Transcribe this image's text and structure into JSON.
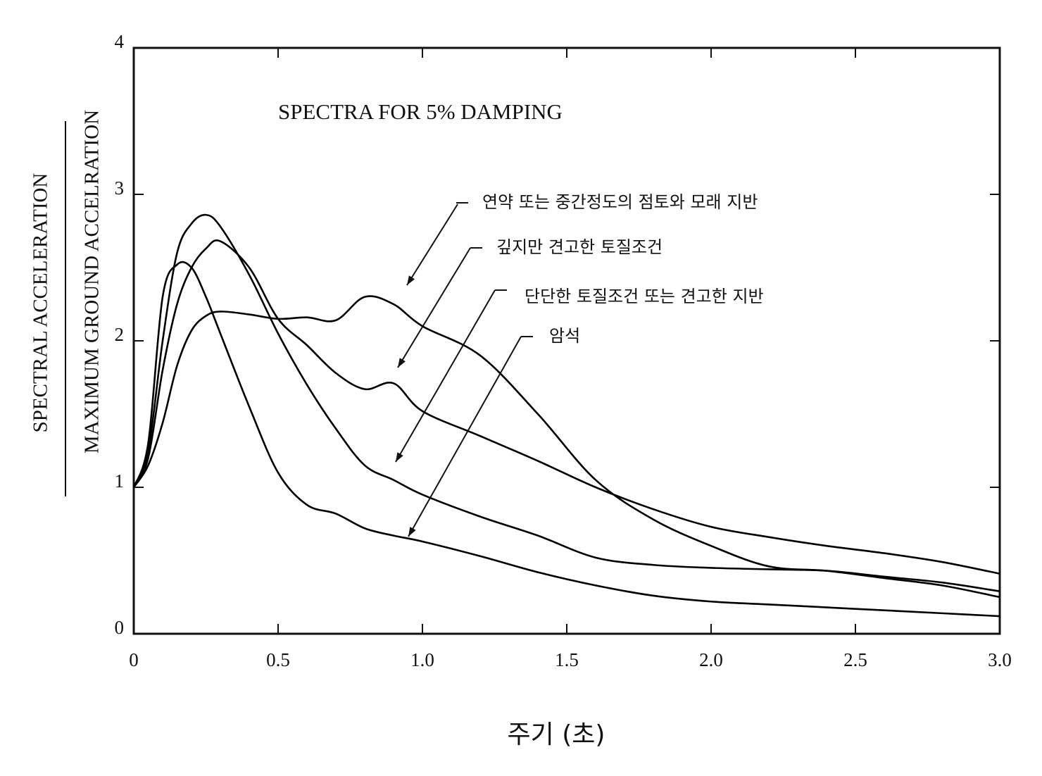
{
  "chart_data": {
    "type": "line",
    "title": "SPECTRA FOR 5% DAMPING",
    "y_label_numerator": "SPECTRAL ACCELERATION",
    "y_label_denominator": "MAXIMUM GROUND ACCELRATION",
    "x_label": "주기 (초)",
    "x": [
      0,
      0.05,
      0.1,
      0.15,
      0.2,
      0.25,
      0.3,
      0.4,
      0.5,
      0.6,
      0.7,
      0.8,
      0.9,
      1.0,
      1.2,
      1.4,
      1.6,
      1.8,
      2.0,
      2.2,
      2.4,
      2.6,
      2.8,
      3.0
    ],
    "series": [
      {
        "name": "연약 또는 중간정도의 점토와 모래 지반",
        "color": "#000000",
        "values": [
          1.0,
          1.15,
          1.44,
          1.83,
          2.07,
          2.17,
          2.2,
          2.18,
          2.15,
          2.16,
          2.14,
          2.3,
          2.25,
          2.1,
          1.9,
          1.5,
          1.05,
          0.78,
          0.6,
          0.46,
          0.43,
          0.38,
          0.33,
          0.25
        ]
      },
      {
        "name": "깊지만 견고한 토질조건",
        "color": "#000000",
        "values": [
          1.0,
          1.2,
          1.8,
          2.25,
          2.5,
          2.63,
          2.68,
          2.5,
          2.15,
          1.97,
          1.78,
          1.67,
          1.71,
          1.52,
          1.35,
          1.18,
          1.0,
          0.85,
          0.73,
          0.66,
          0.6,
          0.55,
          0.49,
          0.41
        ]
      },
      {
        "name": "단단한 토질조건 또는 견고한 지반",
        "color": "#000000",
        "values": [
          1.0,
          1.25,
          2.0,
          2.6,
          2.8,
          2.86,
          2.78,
          2.45,
          2.05,
          1.7,
          1.4,
          1.15,
          1.05,
          0.95,
          0.8,
          0.67,
          0.52,
          0.47,
          0.45,
          0.44,
          0.43,
          0.39,
          0.35,
          0.29
        ]
      },
      {
        "name": "암석",
        "color": "#000000",
        "values": [
          1.0,
          1.3,
          2.3,
          2.52,
          2.5,
          2.3,
          2.05,
          1.55,
          1.1,
          0.88,
          0.82,
          0.72,
          0.67,
          0.63,
          0.53,
          0.42,
          0.33,
          0.26,
          0.22,
          0.2,
          0.18,
          0.16,
          0.14,
          0.12
        ]
      }
    ],
    "xlim": [
      0,
      3.0
    ],
    "ylim": [
      0,
      4
    ],
    "xticks": [
      0,
      0.5,
      {
        "value": 1,
        "label": "1.0"
      },
      1.5,
      {
        "value": 2,
        "label": "2.0"
      },
      2.5,
      {
        "value": 3,
        "label": "3.0"
      }
    ],
    "yticks": [
      0,
      1,
      2,
      3,
      4
    ],
    "grid": false
  }
}
